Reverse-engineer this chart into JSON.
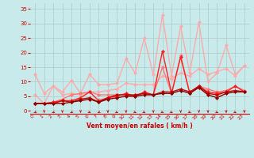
{
  "xlabel": "Vent moyen/en rafales ( km/h )",
  "background_color": "#c8eaea",
  "grid_color": "#b0c8c8",
  "xlim": [
    -0.5,
    23.5
  ],
  "ylim": [
    -1,
    37
  ],
  "yticks": [
    0,
    5,
    10,
    15,
    20,
    25,
    30,
    35
  ],
  "xticks": [
    0,
    1,
    2,
    3,
    4,
    5,
    6,
    7,
    8,
    9,
    10,
    11,
    12,
    13,
    14,
    15,
    16,
    17,
    18,
    19,
    20,
    21,
    22,
    23
  ],
  "series": [
    {
      "color": "#ffaaaa",
      "linewidth": 1.0,
      "marker": "D",
      "markersize": 2,
      "values": [
        12.5,
        6.0,
        8.5,
        6.5,
        10.5,
        6.0,
        12.5,
        9.0,
        9.0,
        9.5,
        18.0,
        13.0,
        25.0,
        12.5,
        33.0,
        12.0,
        29.0,
        13.0,
        30.5,
        10.0,
        13.0,
        22.5,
        12.5,
        15.5
      ]
    },
    {
      "color": "#ffaaaa",
      "linewidth": 1.0,
      "marker": "D",
      "markersize": 2,
      "values": [
        5.5,
        2.5,
        8.5,
        5.5,
        6.0,
        5.5,
        6.5,
        6.5,
        7.0,
        7.5,
        9.5,
        9.0,
        9.0,
        9.0,
        12.0,
        11.0,
        13.0,
        12.0,
        14.5,
        12.5,
        13.5,
        14.5,
        12.0,
        15.5
      ]
    },
    {
      "color": "#ff7777",
      "linewidth": 1.0,
      "marker": "D",
      "markersize": 2,
      "values": [
        2.5,
        2.5,
        3.0,
        4.0,
        5.5,
        6.0,
        6.5,
        5.5,
        5.5,
        5.5,
        5.5,
        5.0,
        6.0,
        5.5,
        15.0,
        6.0,
        19.0,
        6.0,
        8.5,
        7.5,
        6.5,
        7.0,
        8.5,
        7.0
      ]
    },
    {
      "color": "#ff2222",
      "linewidth": 1.0,
      "marker": "D",
      "markersize": 2,
      "values": [
        2.5,
        2.5,
        3.0,
        3.5,
        3.5,
        4.5,
        6.5,
        3.5,
        4.5,
        5.0,
        6.0,
        5.0,
        6.5,
        5.5,
        20.5,
        6.0,
        18.5,
        6.0,
        8.5,
        6.5,
        6.0,
        6.5,
        8.5,
        6.5
      ]
    },
    {
      "color": "#cc0000",
      "linewidth": 1.0,
      "marker": "D",
      "markersize": 2,
      "values": [
        2.5,
        2.5,
        2.5,
        3.5,
        3.0,
        4.0,
        4.5,
        3.0,
        4.5,
        5.5,
        5.5,
        5.5,
        6.0,
        5.5,
        6.5,
        6.5,
        7.5,
        6.5,
        8.5,
        6.0,
        5.5,
        6.5,
        7.0,
        6.5
      ]
    },
    {
      "color": "#880000",
      "linewidth": 1.0,
      "marker": "D",
      "markersize": 2,
      "values": [
        2.5,
        2.5,
        2.5,
        2.5,
        3.0,
        3.5,
        4.0,
        3.0,
        4.0,
        4.5,
        5.0,
        5.0,
        5.5,
        5.5,
        6.0,
        6.0,
        7.0,
        6.0,
        8.0,
        5.5,
        4.5,
        6.0,
        6.5,
        6.5
      ]
    }
  ],
  "arrow_angles": [
    225,
    270,
    225,
    270,
    225,
    270,
    315,
    225,
    270,
    315,
    270,
    315,
    315,
    270,
    315,
    315,
    270,
    315,
    270,
    270,
    315,
    270,
    315,
    270
  ]
}
